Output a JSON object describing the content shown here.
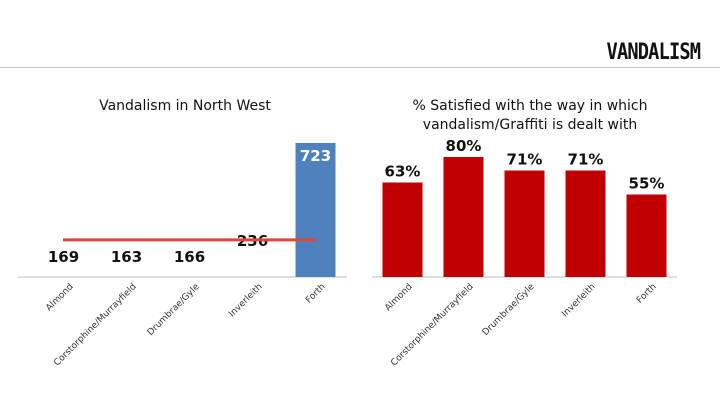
{
  "header": {
    "title": "VANDALISM"
  },
  "colors": {
    "left_bar": "#4f81bd",
    "right_bar": "#c00000",
    "reference_line": "#e0463c",
    "axis": "#bfbfbf"
  },
  "chart_data": [
    {
      "type": "bar",
      "title": "Vandalism in North West",
      "categories": [
        "Almond",
        "Corstorphine/Murrayfield",
        "Drumbrae/Gyle",
        "Inverleith",
        "Forth"
      ],
      "values": [
        169,
        163,
        166,
        236,
        723
      ],
      "ylim": [
        0,
        800
      ],
      "reference_line": 200,
      "bar_visible": [
        false,
        false,
        false,
        false,
        true
      ],
      "grid": false
    },
    {
      "type": "bar",
      "title": "% Satisfied with the way in which vandalism/Graffiti is dealt with",
      "categories": [
        "Almond",
        "Corstorphine/Murrayfield",
        "Drumbrae/Gyle",
        "Inverleith",
        "Forth"
      ],
      "values": [
        63,
        80,
        71,
        71,
        55
      ],
      "value_labels": [
        "63%",
        "80%",
        "71%",
        "71%",
        "55%"
      ],
      "ylim": [
        0,
        100
      ],
      "grid": false
    }
  ]
}
